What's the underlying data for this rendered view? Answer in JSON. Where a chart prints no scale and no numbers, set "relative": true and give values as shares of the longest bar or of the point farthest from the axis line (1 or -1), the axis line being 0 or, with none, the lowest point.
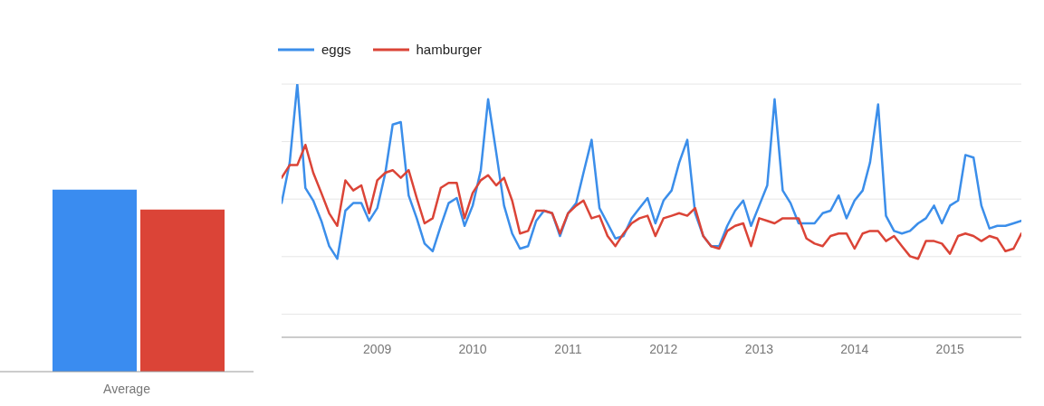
{
  "chart_data": [
    {
      "type": "bar",
      "relative": true,
      "xlabel": "Average",
      "categories": [
        null,
        null
      ],
      "values": [
        1,
        0.89
      ],
      "colors": [
        "#3a8cf0",
        "#db4437"
      ]
    },
    {
      "type": "line",
      "relative": true,
      "grid": "y",
      "legend": "top left",
      "line_style": "solid",
      "xlim": [
        "2008-01",
        "2015-10"
      ],
      "xticks": [
        "2009",
        "2010",
        "2011",
        "2012",
        "2013",
        "2014",
        "2015"
      ],
      "x": [
        "2008-01",
        "2008-02",
        "2008-03",
        "2008-04",
        "2008-05",
        "2008-06",
        "2008-07",
        "2008-08",
        "2008-09",
        "2008-10",
        "2008-11",
        "2008-12",
        "2009-01",
        "2009-02",
        "2009-03",
        "2009-04",
        "2009-05",
        "2009-06",
        "2009-07",
        "2009-08",
        "2009-09",
        "2009-10",
        "2009-11",
        "2009-12",
        "2010-01",
        "2010-02",
        "2010-03",
        "2010-04",
        "2010-05",
        "2010-06",
        "2010-07",
        "2010-08",
        "2010-09",
        "2010-10",
        "2010-11",
        "2010-12",
        "2011-01",
        "2011-02",
        "2011-03",
        "2011-04",
        "2011-05",
        "2011-06",
        "2011-07",
        "2011-08",
        "2011-09",
        "2011-10",
        "2011-11",
        "2011-12",
        "2012-01",
        "2012-02",
        "2012-03",
        "2012-04",
        "2012-05",
        "2012-06",
        "2012-07",
        "2012-08",
        "2012-09",
        "2012-10",
        "2012-11",
        "2012-12",
        "2013-01",
        "2013-02",
        "2013-03",
        "2013-04",
        "2013-05",
        "2013-06",
        "2013-07",
        "2013-08",
        "2013-09",
        "2013-10",
        "2013-11",
        "2013-12",
        "2014-01",
        "2014-02",
        "2014-03",
        "2014-04",
        "2014-05",
        "2014-06",
        "2014-07",
        "2014-08",
        "2014-09",
        "2014-10",
        "2014-11",
        "2014-12",
        "2015-01",
        "2015-02",
        "2015-03",
        "2015-04",
        "2015-05",
        "2015-06",
        "2015-07",
        "2015-08",
        "2015-09",
        "2015-10"
      ],
      "series": [
        {
          "name": "eggs",
          "color": "#3b8eea",
          "values": [
            0.53,
            0.69,
            1.0,
            0.59,
            0.54,
            0.46,
            0.36,
            0.31,
            0.5,
            0.53,
            0.53,
            0.46,
            0.51,
            0.65,
            0.84,
            0.85,
            0.56,
            0.47,
            0.37,
            0.34,
            0.44,
            0.53,
            0.55,
            0.44,
            0.52,
            0.66,
            0.94,
            0.73,
            0.52,
            0.41,
            0.35,
            0.36,
            0.46,
            0.5,
            0.49,
            0.4,
            0.49,
            0.53,
            0.65,
            0.78,
            0.51,
            0.45,
            0.39,
            0.4,
            0.47,
            0.51,
            0.55,
            0.45,
            0.54,
            0.58,
            0.69,
            0.78,
            0.49,
            0.4,
            0.36,
            0.36,
            0.44,
            0.5,
            0.54,
            0.44,
            0.52,
            0.6,
            0.94,
            0.58,
            0.53,
            0.45,
            0.45,
            0.45,
            0.49,
            0.5,
            0.56,
            0.47,
            0.54,
            0.58,
            0.69,
            0.92,
            0.48,
            0.42,
            0.41,
            0.42,
            0.45,
            0.47,
            0.52,
            0.45,
            0.52,
            0.54,
            0.72,
            0.71,
            0.52,
            0.43,
            0.44,
            0.44,
            0.45,
            0.46
          ]
        },
        {
          "name": "hamburger",
          "color": "#db4437",
          "values": [
            0.63,
            0.68,
            0.68,
            0.76,
            0.65,
            0.57,
            0.49,
            0.44,
            0.62,
            0.58,
            0.6,
            0.49,
            0.62,
            0.65,
            0.66,
            0.63,
            0.66,
            0.55,
            0.45,
            0.47,
            0.59,
            0.61,
            0.61,
            0.47,
            0.57,
            0.62,
            0.64,
            0.6,
            0.63,
            0.54,
            0.41,
            0.42,
            0.5,
            0.5,
            0.49,
            0.41,
            0.49,
            0.52,
            0.54,
            0.47,
            0.48,
            0.4,
            0.36,
            0.41,
            0.45,
            0.47,
            0.48,
            0.4,
            0.47,
            0.48,
            0.49,
            0.48,
            0.51,
            0.4,
            0.36,
            0.35,
            0.42,
            0.44,
            0.45,
            0.36,
            0.47,
            0.46,
            0.45,
            0.47,
            0.47,
            0.47,
            0.39,
            0.37,
            0.36,
            0.4,
            0.41,
            0.41,
            0.35,
            0.41,
            0.42,
            0.42,
            0.38,
            0.4,
            0.36,
            0.32,
            0.31,
            0.38,
            0.38,
            0.37,
            0.33,
            0.4,
            0.41,
            0.4,
            0.38,
            0.4,
            0.39,
            0.34,
            0.35,
            0.41
          ]
        }
      ]
    }
  ]
}
